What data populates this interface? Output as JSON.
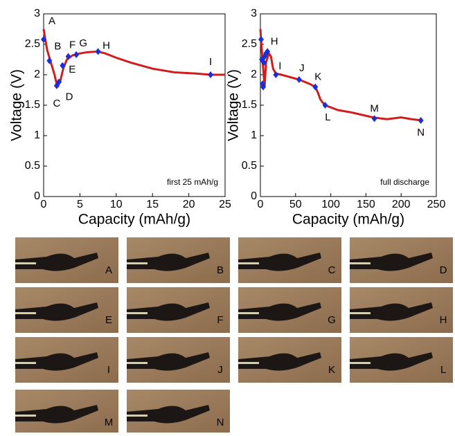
{
  "chart_data": [
    {
      "type": "line",
      "xlabel": "Capacity (mAh/g)",
      "ylabel": "Voltage (V)",
      "annotation": "first 25 mAh/g",
      "xlim": [
        0,
        25
      ],
      "ylim": [
        0,
        3
      ],
      "xticks": [
        0,
        5,
        10,
        15,
        20,
        25
      ],
      "yticks": [
        0,
        0.5,
        1,
        1.5,
        2,
        2.5,
        3
      ],
      "color": "#d01c1c",
      "x": [
        0,
        0.2,
        0.5,
        1,
        1.5,
        1.8,
        2,
        2.3,
        2.7,
        3.2,
        4,
        5,
        6,
        7.5,
        8.5,
        10,
        12,
        15,
        18,
        21,
        23,
        25
      ],
      "values": [
        2.75,
        2.6,
        2.4,
        2.2,
        2.0,
        1.85,
        1.82,
        1.9,
        2.1,
        2.25,
        2.32,
        2.35,
        2.37,
        2.38,
        2.35,
        2.28,
        2.2,
        2.1,
        2.04,
        2.02,
        2.0,
        2.0
      ],
      "markers": {
        "color": "#1a2fd6",
        "labels": [
          "A",
          "B",
          "C",
          "D",
          "E",
          "F",
          "G",
          "H",
          "I"
        ],
        "x": [
          0,
          0.8,
          1.8,
          2.1,
          2.6,
          3.4,
          4.5,
          7.5,
          23
        ],
        "values": [
          2.58,
          2.23,
          1.82,
          1.88,
          2.15,
          2.3,
          2.33,
          2.38,
          2.0
        ]
      }
    },
    {
      "type": "line",
      "xlabel": "Capacity (mAh/g)",
      "ylabel": "Voltage (V)",
      "annotation": "full discharge",
      "xlim": [
        0,
        250
      ],
      "ylim": [
        0,
        3
      ],
      "xticks": [
        0,
        50,
        100,
        150,
        200,
        250
      ],
      "yticks": [
        0,
        0.5,
        1,
        1.5,
        2,
        2.5,
        3
      ],
      "color": "#d01c1c",
      "x": [
        0,
        2,
        4,
        6,
        8,
        12,
        15,
        18,
        22,
        30,
        55,
        70,
        78,
        82,
        85,
        88,
        92,
        110,
        130,
        160,
        180,
        200,
        215,
        230
      ],
      "values": [
        2.75,
        2.4,
        2.1,
        1.8,
        2.2,
        2.35,
        2.3,
        2.1,
        2.02,
        2.0,
        1.92,
        1.85,
        1.8,
        1.7,
        1.6,
        1.55,
        1.5,
        1.42,
        1.38,
        1.3,
        1.27,
        1.3,
        1.27,
        1.25
      ],
      "markers": {
        "color": "#1a2fd6",
        "labels": [
          null,
          null,
          null,
          null,
          null,
          null,
          null,
          "H",
          "I",
          "J",
          "K",
          "L",
          "M",
          "N"
        ],
        "x": [
          1,
          2,
          3,
          4,
          5,
          6,
          8,
          10,
          22,
          55,
          78,
          92,
          162,
          228
        ],
        "values": [
          2.58,
          2.25,
          1.85,
          1.8,
          2.2,
          2.3,
          2.35,
          2.38,
          2.0,
          1.92,
          1.8,
          1.5,
          1.28,
          1.25
        ]
      }
    }
  ],
  "panels": [
    "A",
    "B",
    "C",
    "D",
    "E",
    "F",
    "G",
    "H",
    "I",
    "J",
    "K",
    "L",
    "M",
    "N"
  ]
}
